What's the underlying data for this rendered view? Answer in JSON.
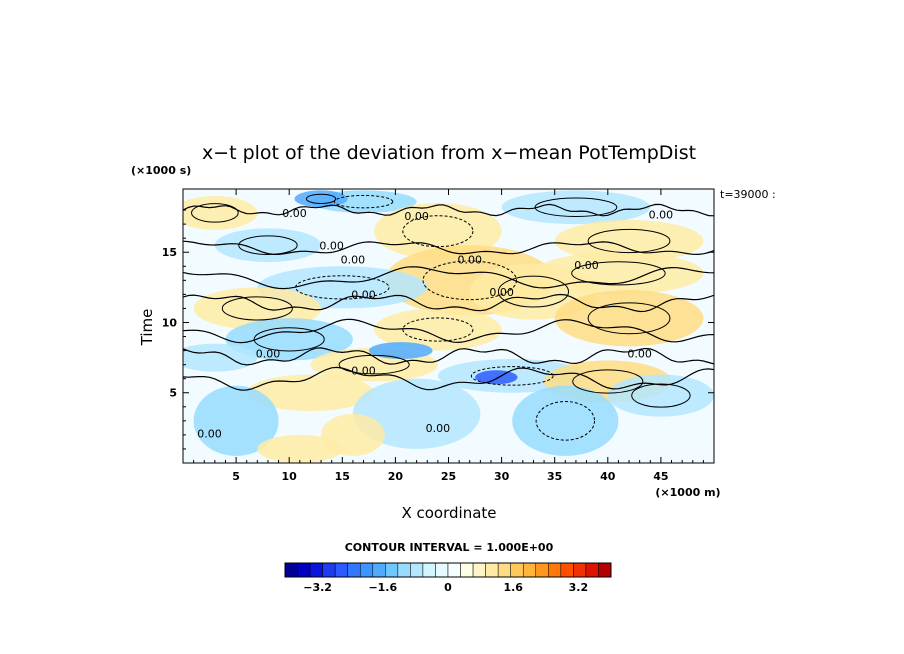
{
  "chart_data": {
    "type": "heatmap",
    "title": "x−t plot of the deviation from x−mean PotTempDist",
    "xlabel": "X coordinate",
    "ylabel": "Time",
    "x_unit": "(×1000 m)",
    "y_unit": "(×1000 s)",
    "time_label": "t=39000 :",
    "xlim": [
      0,
      50
    ],
    "ylim": [
      0,
      19.5
    ],
    "x_ticks": [
      5,
      10,
      15,
      20,
      25,
      30,
      35,
      40,
      45
    ],
    "y_ticks": [
      5,
      10,
      15
    ],
    "contour_interval_text": "CONTOUR INTERVAL = 1.000E+00",
    "contour_label": "0.00",
    "colorbar": {
      "min": -4,
      "max": 4,
      "step": 0.4,
      "tick_labels": [
        "−3.2",
        "−1.6",
        "0",
        "1.6",
        "3.2"
      ],
      "tick_values": [
        -3.2,
        -1.6,
        0,
        1.6,
        3.2
      ],
      "colors": [
        "#000096",
        "#0000be",
        "#0a14dc",
        "#1e3cf0",
        "#2d5aff",
        "#3278ff",
        "#3c96ff",
        "#50aaff",
        "#6ec8ff",
        "#96dcff",
        "#b4e6ff",
        "#d2f5ff",
        "#e6faff",
        "#f5ffff",
        "#ffffe6",
        "#fff5c8",
        "#ffeba5",
        "#ffdc82",
        "#ffc85a",
        "#ffb43c",
        "#ff961e",
        "#ff780a",
        "#ff5000",
        "#f03200",
        "#dc1400",
        "#b40000"
      ]
    },
    "grid": false,
    "legend": "none"
  }
}
